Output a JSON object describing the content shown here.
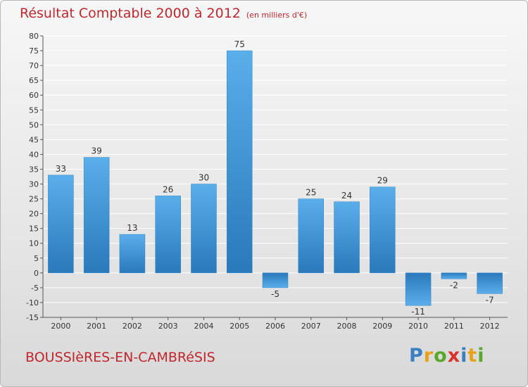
{
  "header": {
    "title": "Résultat Comptable 2000 à 2012",
    "subtitle": "(en milliers d'€)"
  },
  "footer": {
    "commune": "BOUSSIèRES-EN-CAMBRéSIS",
    "logo_letters": [
      "P",
      "r",
      "o",
      "x",
      "i",
      "t",
      "i"
    ],
    "logo_colors": [
      "#3a7fc1",
      "#e8a21a",
      "#5aa82b",
      "#d9322b",
      "#3a7fc1",
      "#e8a21a",
      "#5aa82b"
    ]
  },
  "chart_data": {
    "type": "bar",
    "title": "Résultat Comptable 2000 à 2012",
    "subtitle": "(en milliers d'€)",
    "categories": [
      "2000",
      "2001",
      "2002",
      "2003",
      "2004",
      "2005",
      "2006",
      "2007",
      "2008",
      "2009",
      "2010",
      "2011",
      "2012"
    ],
    "values": [
      33,
      39,
      13,
      26,
      30,
      75,
      -5,
      25,
      24,
      29,
      -11,
      -2,
      -7
    ],
    "ylim": [
      -15,
      80
    ],
    "yticks": [
      -15,
      -10,
      -5,
      0,
      5,
      10,
      15,
      20,
      25,
      30,
      35,
      40,
      45,
      50,
      55,
      60,
      65,
      70,
      75,
      80
    ],
    "grid": true,
    "bar_color": "#3f93d6"
  }
}
